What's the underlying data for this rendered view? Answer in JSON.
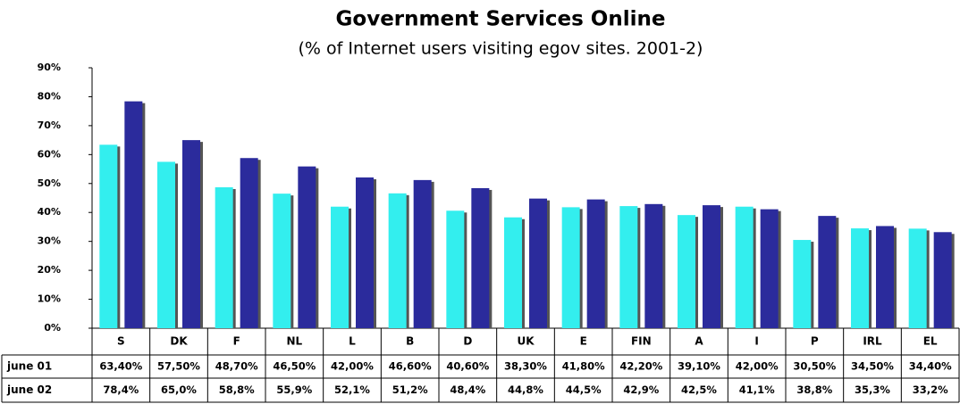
{
  "chart_data": {
    "type": "bar",
    "title": "Government Services Online",
    "subtitle": "(% of Internet users visiting egov sites. 2001-2)",
    "categories": [
      "S",
      "DK",
      "F",
      "NL",
      "L",
      "B",
      "D",
      "UK",
      "E",
      "FIN",
      "A",
      "I",
      "P",
      "IRL",
      "EL"
    ],
    "series": [
      {
        "name": "june 01",
        "color": "#33eeee",
        "values": [
          63.4,
          57.5,
          48.7,
          46.5,
          42.0,
          46.6,
          40.6,
          38.3,
          41.8,
          42.2,
          39.1,
          42.0,
          30.5,
          34.5,
          34.4
        ],
        "value_labels": [
          "63,40%",
          "57,50%",
          "48,70%",
          "46,50%",
          "42,00%",
          "46,60%",
          "40,60%",
          "38,30%",
          "41,80%",
          "42,20%",
          "39,10%",
          "42,00%",
          "30,50%",
          "34,50%",
          "34,40%"
        ]
      },
      {
        "name": "june 02",
        "color": "#2b2b9c",
        "values": [
          78.4,
          65.0,
          58.8,
          55.9,
          52.1,
          51.2,
          48.4,
          44.8,
          44.5,
          42.9,
          42.5,
          41.1,
          38.8,
          35.3,
          33.2
        ],
        "value_labels": [
          "78,4%",
          "65,0%",
          "58,8%",
          "55,9%",
          "52,1%",
          "51,2%",
          "48,4%",
          "44,8%",
          "44,5%",
          "42,9%",
          "42,5%",
          "41,1%",
          "38,8%",
          "35,3%",
          "33,2%"
        ]
      }
    ],
    "ylim": [
      0,
      90
    ],
    "yticks": [
      {
        "value": 0,
        "label": "0%"
      },
      {
        "value": 10,
        "label": "10%"
      },
      {
        "value": 20,
        "label": "20%"
      },
      {
        "value": 30,
        "label": "30%"
      },
      {
        "value": 40,
        "label": "40%"
      },
      {
        "value": 50,
        "label": "50%"
      },
      {
        "value": 60,
        "label": "60%"
      },
      {
        "value": 70,
        "label": "70%"
      },
      {
        "value": 80,
        "label": "80%"
      },
      {
        "value": 90,
        "label": "90%"
      }
    ]
  }
}
